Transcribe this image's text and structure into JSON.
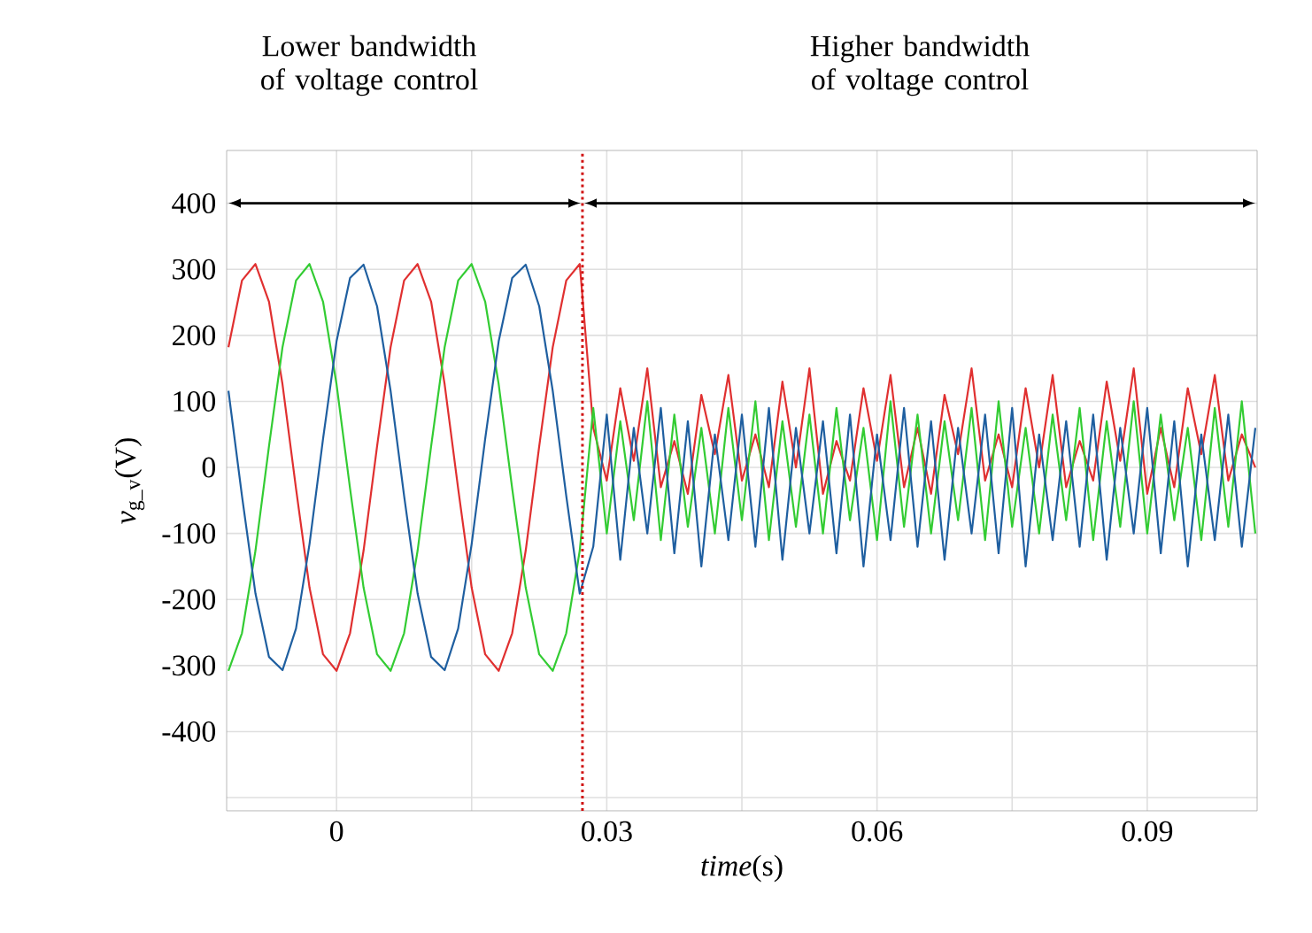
{
  "chart_data": {
    "type": "line",
    "xlabel": "*time*(s)",
    "ylabel": "*v*$_{g_v}$(V)",
    "annotations": [
      "Lower bandwidth of voltage control",
      "Higher bandwidth of voltage control"
    ],
    "x": [
      -0.012,
      -0.0105,
      -0.009,
      -0.0075,
      -0.006,
      -0.0045,
      -0.003,
      -0.0015,
      0,
      0.0015,
      0.003,
      0.0045,
      0.006,
      0.0075,
      0.009,
      0.0105,
      0.012,
      0.0135,
      0.015,
      0.0165,
      0.018,
      0.0195,
      0.021,
      0.0225,
      0.024,
      0.0255,
      0.027,
      0.0285,
      0.03,
      0.0315,
      0.033,
      0.0345,
      0.036,
      0.0375,
      0.039,
      0.0405,
      0.042,
      0.0435,
      0.045,
      0.0465,
      0.048,
      0.0495,
      0.051,
      0.0525,
      0.054,
      0.0555,
      0.057,
      0.0585,
      0.06,
      0.0615,
      0.063,
      0.0645,
      0.066,
      0.0675,
      0.069,
      0.0705,
      0.072,
      0.0735,
      0.075,
      0.0765,
      0.078,
      0.0795,
      0.081,
      0.0825,
      0.084,
      0.0855,
      0.087,
      0.0885,
      0.09,
      0.0915,
      0.093,
      0.0945,
      0.096,
      0.0975,
      0.099,
      0.1005,
      0.102
    ],
    "series": [
      {
        "color": "#e03030",
        "values": [
          182,
          283,
          308,
          251,
          126,
          -32,
          -182,
          -283,
          -308,
          -251,
          -126,
          32,
          182,
          283,
          308,
          251,
          126,
          -32,
          -182,
          -283,
          -308,
          -251,
          -126,
          32,
          182,
          283,
          308,
          60,
          -20,
          120,
          10,
          150,
          -30,
          40,
          -40,
          110,
          20,
          140,
          -20,
          50,
          -30,
          130,
          0,
          150,
          -40,
          40,
          -20,
          120,
          10,
          140,
          -30,
          60,
          -40,
          110,
          20,
          150,
          -20,
          50,
          -30,
          120,
          0,
          140,
          -30,
          40,
          -20,
          130,
          10,
          150,
          -40,
          60,
          -30,
          120,
          20,
          140,
          -20,
          50,
          0
        ]
      },
      {
        "color": "#33cc33",
        "values": [
          -308,
          -251,
          -126,
          32,
          182,
          283,
          308,
          251,
          126,
          -32,
          -182,
          -283,
          -308,
          -251,
          -126,
          32,
          182,
          283,
          308,
          251,
          126,
          -32,
          -182,
          -283,
          -308,
          -251,
          -126,
          90,
          -100,
          70,
          -80,
          100,
          -110,
          80,
          -90,
          60,
          -100,
          90,
          -80,
          100,
          -110,
          70,
          -90,
          80,
          -100,
          90,
          -80,
          60,
          -110,
          100,
          -90,
          80,
          -100,
          70,
          -80,
          90,
          -110,
          100,
          -90,
          60,
          -100,
          80,
          -80,
          90,
          -110,
          70,
          -90,
          100,
          -100,
          80,
          -80,
          60,
          -110,
          90,
          -90,
          100,
          -100
        ]
      },
      {
        "color": "#1f5fa0",
        "values": [
          116,
          -43,
          -191,
          -287,
          -307,
          -244,
          -116,
          43,
          191,
          287,
          307,
          244,
          116,
          -43,
          -191,
          -287,
          -307,
          -244,
          -116,
          43,
          191,
          287,
          307,
          244,
          116,
          -43,
          -191,
          -120,
          80,
          -140,
          60,
          -100,
          90,
          -130,
          70,
          -150,
          50,
          -110,
          80,
          -120,
          90,
          -140,
          60,
          -100,
          70,
          -130,
          80,
          -150,
          50,
          -110,
          90,
          -120,
          70,
          -140,
          60,
          -100,
          80,
          -130,
          90,
          -150,
          50,
          -110,
          70,
          -120,
          80,
          -140,
          60,
          -100,
          90,
          -130,
          70,
          -150,
          50,
          -110,
          80,
          -120,
          60
        ]
      }
    ],
    "ref_lines": [
      {
        "axis": "x",
        "value": 0.0273,
        "color": "#d01010",
        "line_style": "dotted"
      }
    ],
    "xlim": [
      -0.0122,
      0.1022
    ],
    "ylim": [
      -520,
      480
    ],
    "xticks": [
      0,
      {
        "value": 0.015,
        "label": null
      },
      0.03,
      {
        "value": 0.045,
        "label": null
      },
      0.06,
      {
        "value": 0.075,
        "label": null
      },
      0.09
    ],
    "yticks": [
      {
        "value": -500,
        "label": null
      },
      -400,
      -300,
      -200,
      -100,
      0,
      100,
      200,
      300,
      400
    ],
    "grid": true,
    "marker": "none",
    "line_style": "solid"
  }
}
